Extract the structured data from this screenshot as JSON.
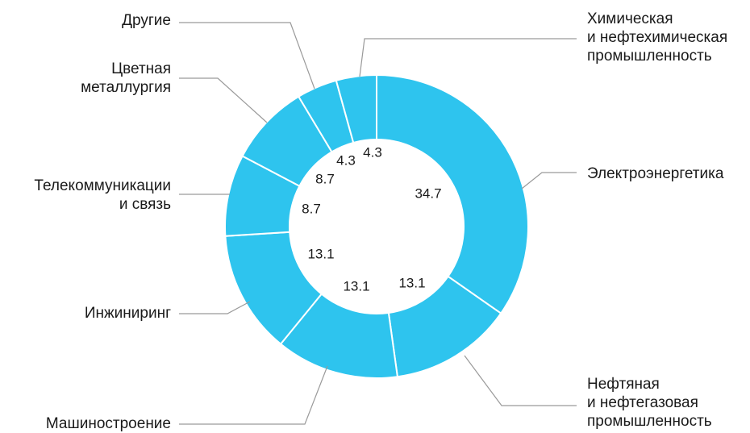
{
  "chart_data": {
    "type": "pie",
    "variant": "donut",
    "segment_color": "#2EC4EE",
    "leader_color": "#9a9a9a",
    "slices": [
      {
        "label": [
          "Электроэнергетика"
        ],
        "value": 34.7
      },
      {
        "label": [
          "Нефтяная",
          "и нефтегазовая",
          "промышленность"
        ],
        "value": 13.1
      },
      {
        "label": [
          "Машиностроение"
        ],
        "value": 13.1
      },
      {
        "label": [
          "Инжиниринг"
        ],
        "value": 13.1
      },
      {
        "label": [
          "Телекоммуникации",
          "и связь"
        ],
        "value": 8.7
      },
      {
        "label": [
          "Цветная",
          "металлургия"
        ],
        "value": 8.7
      },
      {
        "label": [
          "Другие"
        ],
        "value": 4.3
      },
      {
        "label": [
          "Химическая",
          "и нефтехимическая",
          "промышленность"
        ],
        "value": 4.3
      }
    ]
  }
}
